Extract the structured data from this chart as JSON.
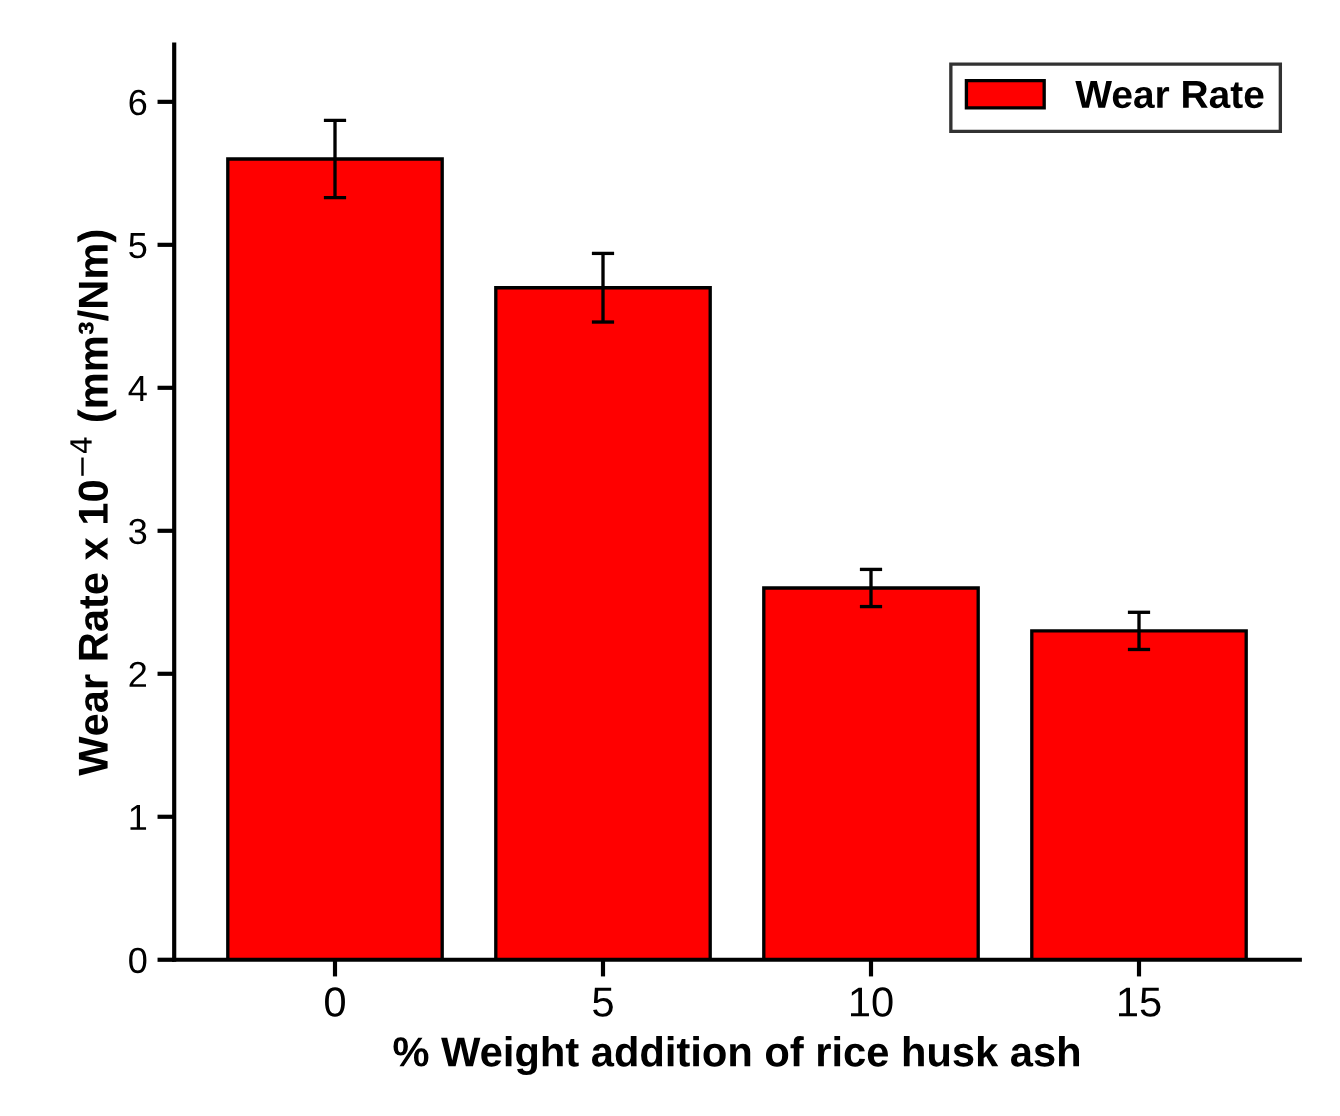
{
  "chart_data": {
    "type": "bar",
    "xlabel": "% Weight addition of rice husk ash",
    "ylabel": "Wear Rate x 10$^{−4}$ (mm³/Nm)",
    "categories": [
      "0",
      "5",
      "10",
      "15"
    ],
    "series": [
      {
        "name": "Wear Rate",
        "color": "#ff0000",
        "values": [
          5.6,
          4.7,
          2.6,
          2.3
        ],
        "errors": [
          0.27,
          0.24,
          0.13,
          0.13
        ]
      }
    ],
    "ylim": [
      0,
      6.4
    ],
    "yticks": [
      0,
      1,
      2,
      3,
      4,
      5,
      6
    ],
    "grid": false,
    "legend": "top right"
  }
}
